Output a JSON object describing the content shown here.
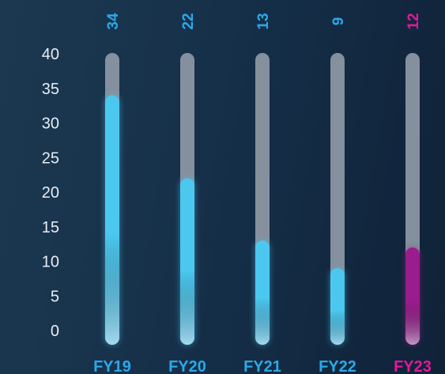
{
  "chart_data": {
    "type": "bar",
    "categories": [
      "FY19",
      "FY20",
      "FY21",
      "FY22",
      "FY23"
    ],
    "values": [
      34,
      22,
      13,
      9,
      12
    ],
    "yticks": [
      0,
      5,
      10,
      15,
      20,
      25,
      30,
      35,
      40
    ],
    "ylim": [
      0,
      40
    ],
    "grid": false,
    "legend": "none",
    "highlight_index": 4,
    "colors": {
      "bar": "#4cc8f0",
      "highlight": "#9b1c8c",
      "track": "#8b96a2",
      "label": "#2aa9e8",
      "highlight_label": "#e5179a",
      "tick": "#e8eef4"
    }
  }
}
